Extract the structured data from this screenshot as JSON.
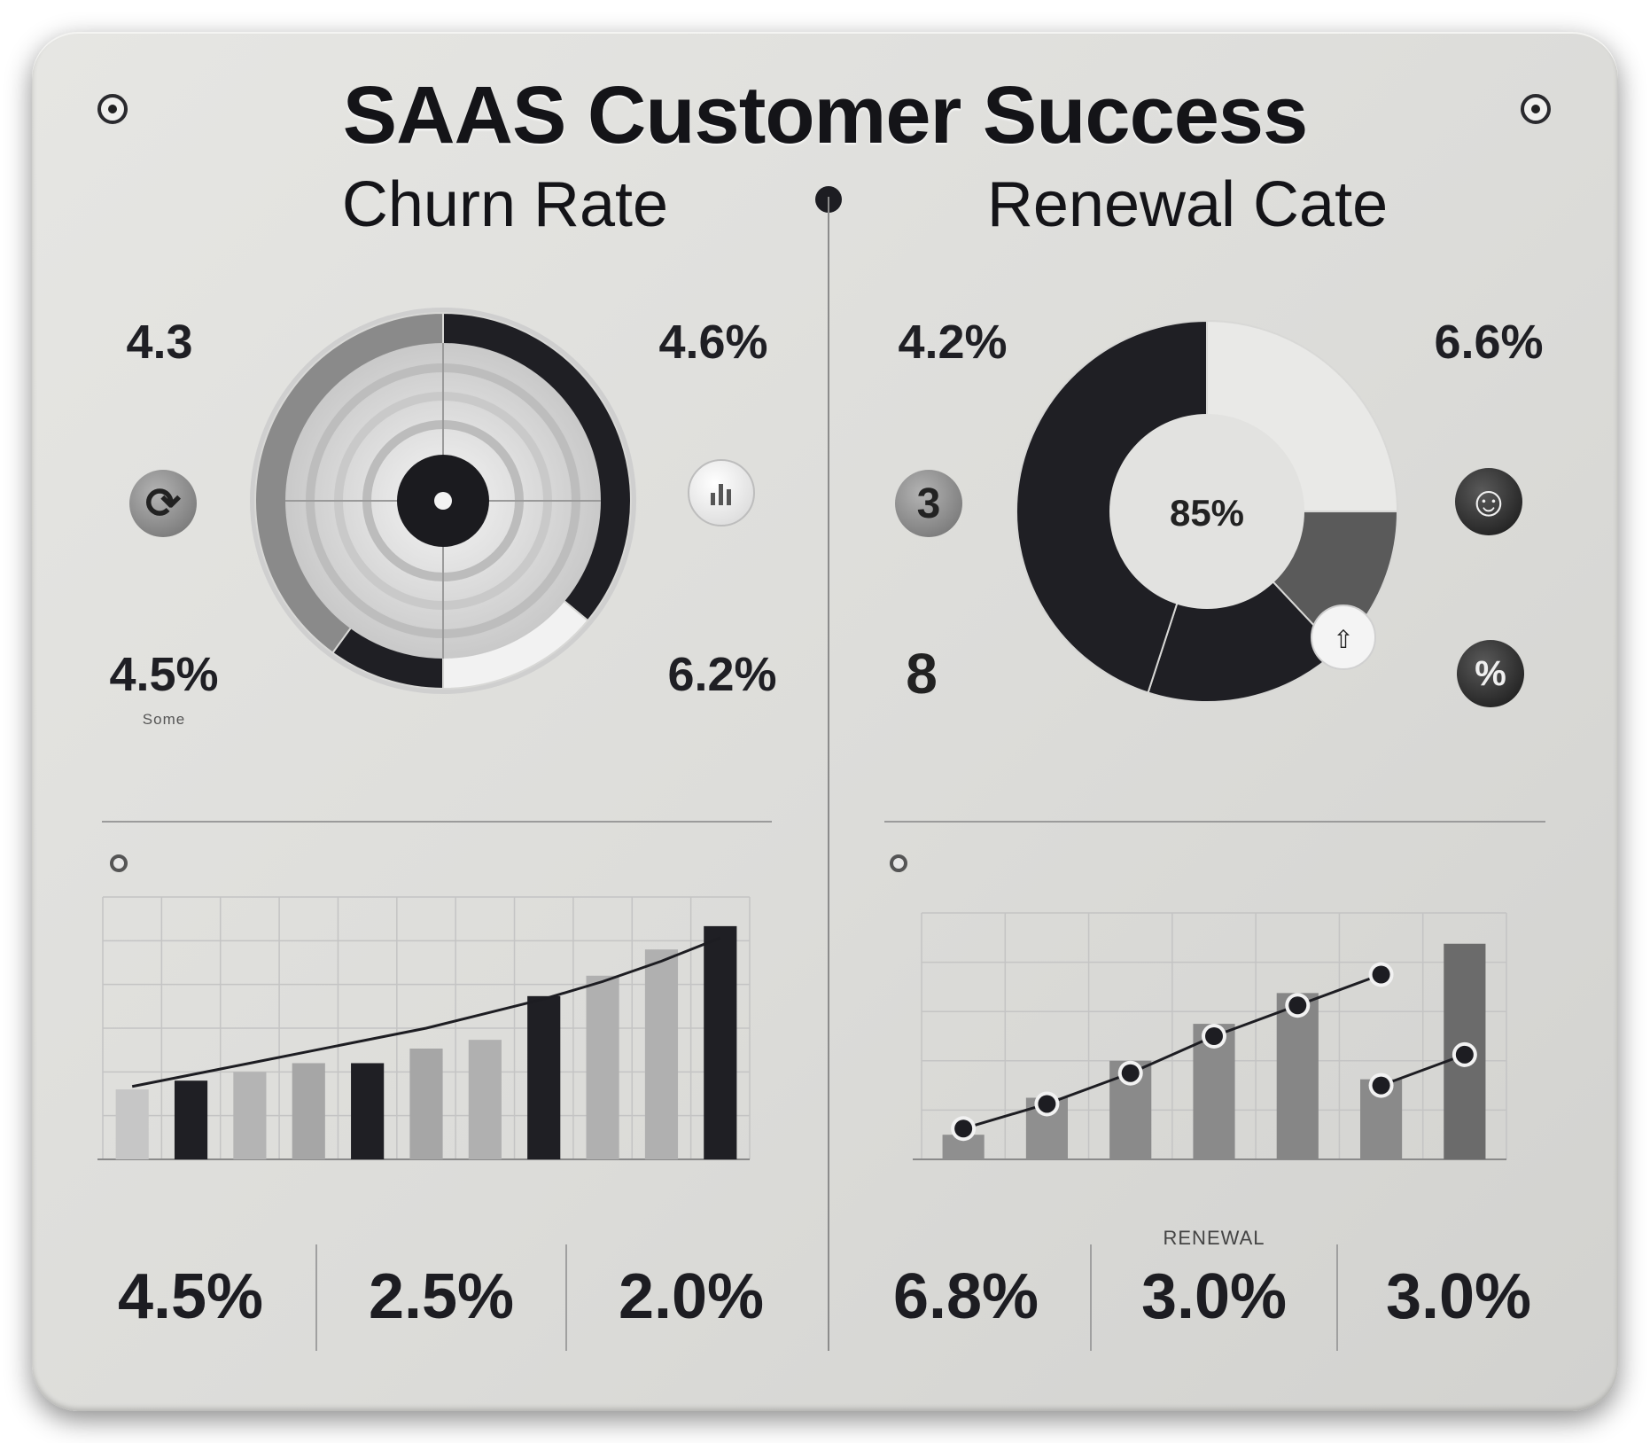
{
  "header": {
    "title": "SAAS Customer Success"
  },
  "churn": {
    "title": "Churn Rate",
    "stats": [
      {
        "value": "4.3",
        "caption": ""
      },
      {
        "value": "4.6%",
        "caption": ""
      },
      {
        "value": "4.5%",
        "caption": "Some"
      },
      {
        "value": "6.2%",
        "caption": ""
      }
    ],
    "kpis": [
      {
        "label": "",
        "value": "4.5%"
      },
      {
        "label": "",
        "value": "2.5%"
      },
      {
        "label": "",
        "value": "2.0%"
      }
    ]
  },
  "renewal": {
    "title": "Renewal Cate",
    "donut_center": "85%",
    "stats": [
      {
        "value": "4.2%",
        "caption": ""
      },
      {
        "value": "6.6%",
        "caption": ""
      }
    ],
    "badges": [
      {
        "glyph": "3",
        "caption": ""
      },
      {
        "glyph": "8",
        "caption": ""
      }
    ],
    "kpis": [
      {
        "label": "",
        "value": "6.8%"
      },
      {
        "label": "RENEWAL",
        "value": "3.0%"
      },
      {
        "label": "",
        "value": "3.0%"
      }
    ]
  },
  "chart_data": [
    {
      "type": "pie",
      "title": "Churn Rate",
      "values": [
        36,
        14,
        10,
        40
      ],
      "colors": [
        "#1f1f24",
        "#f2f2f2",
        "#1f1f24",
        "#8a8a8a"
      ]
    },
    {
      "type": "pie",
      "title": "Renewal Cate",
      "values": [
        25,
        13,
        17,
        45
      ],
      "colors": [
        "#e9e9e7",
        "#5a5a5a",
        "#1f1f24",
        "#1f1f24"
      ]
    },
    {
      "type": "bar",
      "title": "Churn Rate",
      "bar_values": [
        2.4,
        2.7,
        3.0,
        3.3,
        3.3,
        3.8,
        4.1,
        5.6,
        6.3,
        7.2,
        8.0
      ],
      "bar_colors": [
        "#c6c6c6",
        "#1f1f24",
        "#b4b4b4",
        "#a6a6a6",
        "#1f1f24",
        "#a6a6a6",
        "#b0b0b0",
        "#1f1f24",
        "#b0b0b0",
        "#b0b0b0",
        "#1f1f24"
      ],
      "line_values": [
        2.5,
        2.9,
        3.3,
        3.7,
        4.1,
        4.5,
        5.0,
        5.5,
        6.1,
        6.8,
        7.6
      ],
      "ylim": [
        0,
        9
      ]
    },
    {
      "type": "bar",
      "title": "Renewal Cate",
      "bar_values": [
        4,
        10,
        16,
        22,
        27,
        13,
        35
      ],
      "bar_colors": [
        "#8f8f8f",
        "#8f8f8f",
        "#8a8a8a",
        "#8a8a8a",
        "#868686",
        "#8a8a8a",
        "#6b6b6b"
      ],
      "series": [
        {
          "values": [
            5,
            9,
            14,
            20,
            25,
            30
          ]
        },
        {
          "values": [
            12,
            17
          ]
        }
      ],
      "ylim": [
        0,
        40
      ]
    }
  ]
}
